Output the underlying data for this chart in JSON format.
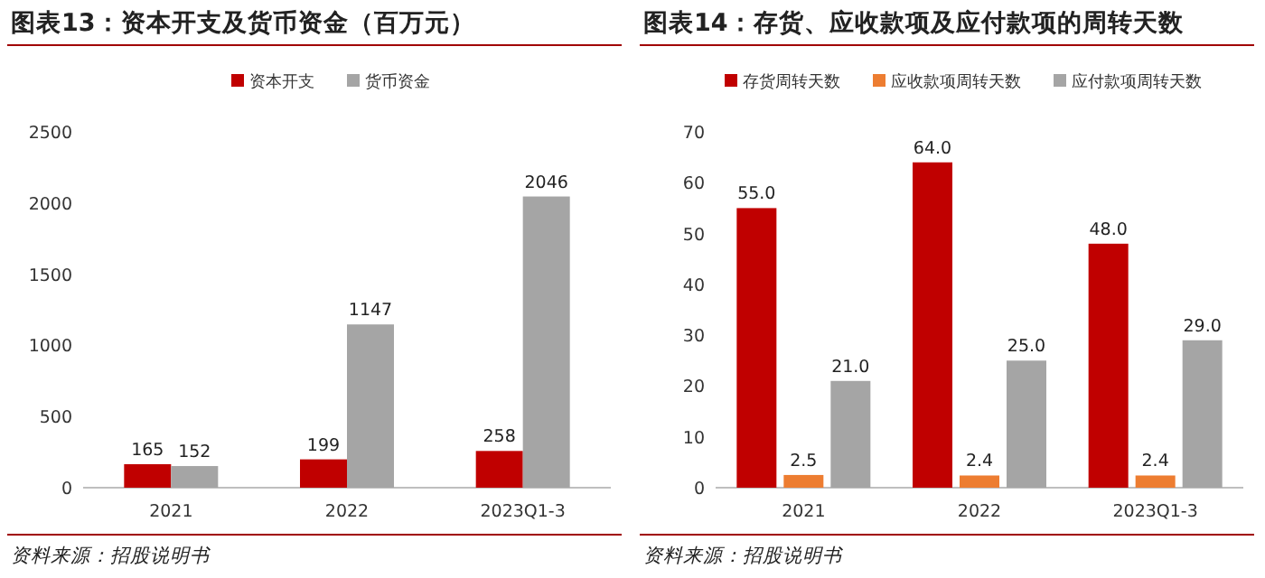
{
  "chart_data": [
    {
      "type": "bar",
      "title": "图表13：资本开支及货币资金（百万元）",
      "categories": [
        "2021",
        "2022",
        "2023Q1-3"
      ],
      "series": [
        {
          "name": "资本开支",
          "color": "#c00000",
          "values": [
            165,
            199,
            258
          ]
        },
        {
          "name": "货币资金",
          "color": "#a5a5a5",
          "values": [
            152,
            1147,
            2046
          ]
        }
      ],
      "ylim": [
        0,
        2500
      ],
      "yticks": [
        0,
        500,
        1000,
        1500,
        2000,
        2500
      ],
      "data_labels": true,
      "legend": "top",
      "grid": false,
      "annotations": [
        "资料来源：招股说明书"
      ]
    },
    {
      "type": "bar",
      "title": "图表14：存货、应收款项及应付款项的周转天数",
      "categories": [
        "2021",
        "2022",
        "2023Q1-3"
      ],
      "series": [
        {
          "name": "存货周转天数",
          "color": "#c00000",
          "values": [
            55.0,
            64.0,
            48.0
          ],
          "value_labels": [
            "55.0",
            "64.0",
            "48.0"
          ]
        },
        {
          "name": "应收款项周转天数",
          "color": "#ed7d31",
          "values": [
            2.5,
            2.4,
            2.4
          ],
          "value_labels": [
            "2.5",
            "2.4",
            "2.4"
          ]
        },
        {
          "name": "应付款项周转天数",
          "color": "#a5a5a5",
          "values": [
            21.0,
            25.0,
            29.0
          ],
          "value_labels": [
            "21.0",
            "25.0",
            "29.0"
          ]
        }
      ],
      "ylim": [
        0,
        70
      ],
      "yticks": [
        0,
        10,
        20,
        30,
        40,
        50,
        60,
        70
      ],
      "legend": "top",
      "grid": false,
      "annotations": [
        "资料来源：招股说明书"
      ]
    }
  ]
}
